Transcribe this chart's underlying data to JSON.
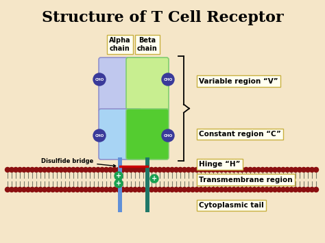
{
  "title": "Structure of T Cell Receptor",
  "background_color": "#f5e6c8",
  "title_fontsize": 16,
  "title_color": "#000000",
  "alpha_chain_label": "Alpha\nchain",
  "beta_chain_label": "Beta\nchain",
  "labels": {
    "variable": "Variable region “V”",
    "constant": "Constant region “C”",
    "hinge": "Hinge “H”",
    "transmembrane": "Transmembrane region",
    "cytoplasmic": "Cytoplasmic tail",
    "disulfide": "Disulfide bridge"
  },
  "alpha_upper_color": "#c0c8ee",
  "alpha_lower_color": "#a8d4f4",
  "beta_upper_color": "#c8ee90",
  "beta_lower_color": "#54cc30",
  "cho_circle_color": "#3a3a9a",
  "cho_text_color": "#ffffff",
  "stem_alpha_color": "#6090d8",
  "stem_beta_color": "#207868",
  "membrane_dot_color": "#8b1010",
  "membrane_line_color": "#7a7a6a",
  "plus_color": "#18a050",
  "disulfide_color": "#cc0000",
  "label_box_color": "#fffff0",
  "label_box_edge": "#c8b040"
}
